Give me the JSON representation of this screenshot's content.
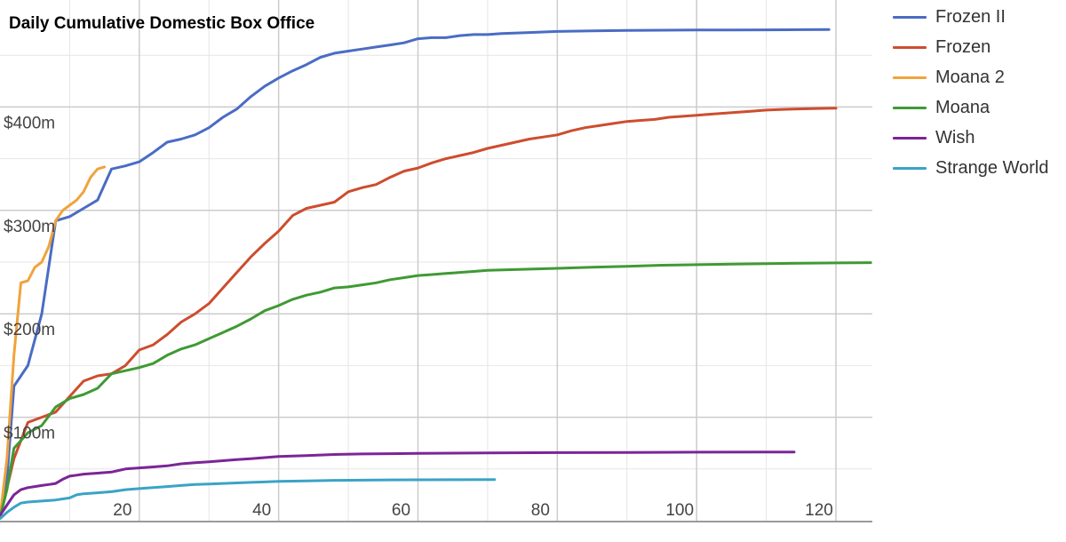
{
  "chart_data": {
    "type": "line",
    "title": "Daily Cumulative Domestic Box Office",
    "xlabel": "",
    "ylabel": "",
    "xlim": [
      0,
      125
    ],
    "ylim": [
      0,
      500
    ],
    "x_ticks": [
      20,
      40,
      60,
      80,
      100,
      120
    ],
    "x_tick_labels": [
      "20",
      "40",
      "60",
      "80",
      "100",
      "120"
    ],
    "y_ticks": [
      100,
      200,
      300,
      400
    ],
    "y_tick_labels": [
      "$100m",
      "$200m",
      "$300m",
      "$400m"
    ],
    "grid": true,
    "legend_position": "right",
    "series": [
      {
        "name": "Frozen II",
        "color": "#4a6cc4",
        "points": [
          [
            0,
            3
          ],
          [
            1,
            40
          ],
          [
            2,
            130
          ],
          [
            4,
            150
          ],
          [
            6,
            200
          ],
          [
            8,
            290
          ],
          [
            10,
            294
          ],
          [
            12,
            302
          ],
          [
            14,
            310
          ],
          [
            16,
            340
          ],
          [
            18,
            343
          ],
          [
            20,
            347
          ],
          [
            22,
            356
          ],
          [
            24,
            366
          ],
          [
            26,
            369
          ],
          [
            28,
            373
          ],
          [
            30,
            380
          ],
          [
            32,
            390
          ],
          [
            34,
            398
          ],
          [
            36,
            410
          ],
          [
            38,
            420
          ],
          [
            40,
            428
          ],
          [
            42,
            435
          ],
          [
            44,
            441
          ],
          [
            46,
            448
          ],
          [
            48,
            452
          ],
          [
            50,
            454
          ],
          [
            52,
            456
          ],
          [
            54,
            458
          ],
          [
            56,
            460
          ],
          [
            58,
            462
          ],
          [
            60,
            466
          ],
          [
            62,
            467
          ],
          [
            64,
            467
          ],
          [
            66,
            469
          ],
          [
            68,
            470
          ],
          [
            70,
            470
          ],
          [
            72,
            471
          ],
          [
            76,
            472
          ],
          [
            80,
            473
          ],
          [
            85,
            473.5
          ],
          [
            90,
            474
          ],
          [
            95,
            474.2
          ],
          [
            100,
            474.4
          ],
          [
            105,
            474.5
          ],
          [
            110,
            474.6
          ],
          [
            115,
            474.7
          ],
          [
            119,
            474.8
          ]
        ]
      },
      {
        "name": "Frozen",
        "color": "#cd4d2e",
        "points": [
          [
            0,
            3
          ],
          [
            2,
            60
          ],
          [
            4,
            95
          ],
          [
            6,
            100
          ],
          [
            8,
            105
          ],
          [
            10,
            120
          ],
          [
            12,
            135
          ],
          [
            14,
            140
          ],
          [
            16,
            142
          ],
          [
            18,
            150
          ],
          [
            20,
            165
          ],
          [
            22,
            170
          ],
          [
            24,
            180
          ],
          [
            26,
            192
          ],
          [
            28,
            200
          ],
          [
            30,
            210
          ],
          [
            32,
            225
          ],
          [
            34,
            240
          ],
          [
            36,
            255
          ],
          [
            38,
            268
          ],
          [
            40,
            280
          ],
          [
            42,
            295
          ],
          [
            44,
            302
          ],
          [
            46,
            305
          ],
          [
            48,
            308
          ],
          [
            50,
            318
          ],
          [
            52,
            322
          ],
          [
            54,
            325
          ],
          [
            56,
            332
          ],
          [
            58,
            338
          ],
          [
            60,
            341
          ],
          [
            62,
            346
          ],
          [
            64,
            350
          ],
          [
            66,
            353
          ],
          [
            68,
            356
          ],
          [
            70,
            360
          ],
          [
            72,
            363
          ],
          [
            74,
            366
          ],
          [
            76,
            369
          ],
          [
            78,
            371
          ],
          [
            80,
            373
          ],
          [
            82,
            377
          ],
          [
            84,
            380
          ],
          [
            86,
            382
          ],
          [
            88,
            384
          ],
          [
            90,
            386
          ],
          [
            92,
            387
          ],
          [
            94,
            388
          ],
          [
            96,
            390
          ],
          [
            98,
            391
          ],
          [
            100,
            392
          ],
          [
            102,
            393
          ],
          [
            104,
            394
          ],
          [
            106,
            395
          ],
          [
            108,
            396
          ],
          [
            110,
            397
          ],
          [
            112,
            397.5
          ],
          [
            114,
            398
          ],
          [
            116,
            398.3
          ],
          [
            118,
            398.6
          ],
          [
            120,
            398.8
          ]
        ]
      },
      {
        "name": "Moana 2",
        "color": "#f0a33c",
        "points": [
          [
            0,
            3
          ],
          [
            1,
            60
          ],
          [
            2,
            160
          ],
          [
            3,
            230
          ],
          [
            4,
            232
          ],
          [
            5,
            245
          ],
          [
            6,
            250
          ],
          [
            7,
            265
          ],
          [
            8,
            290
          ],
          [
            9,
            300
          ],
          [
            10,
            305
          ],
          [
            11,
            310
          ],
          [
            12,
            318
          ],
          [
            13,
            332
          ],
          [
            14,
            340
          ],
          [
            15,
            342
          ]
        ]
      },
      {
        "name": "Moana",
        "color": "#3f9a34",
        "points": [
          [
            0,
            3
          ],
          [
            1,
            30
          ],
          [
            2,
            70
          ],
          [
            4,
            85
          ],
          [
            6,
            92
          ],
          [
            8,
            110
          ],
          [
            10,
            118
          ],
          [
            12,
            122
          ],
          [
            14,
            128
          ],
          [
            16,
            142
          ],
          [
            18,
            145
          ],
          [
            20,
            148
          ],
          [
            22,
            152
          ],
          [
            24,
            160
          ],
          [
            26,
            166
          ],
          [
            28,
            170
          ],
          [
            30,
            176
          ],
          [
            32,
            182
          ],
          [
            34,
            188
          ],
          [
            36,
            195
          ],
          [
            38,
            203
          ],
          [
            40,
            208
          ],
          [
            42,
            214
          ],
          [
            44,
            218
          ],
          [
            46,
            221
          ],
          [
            48,
            225
          ],
          [
            50,
            226
          ],
          [
            52,
            228
          ],
          [
            54,
            230
          ],
          [
            56,
            233
          ],
          [
            58,
            235
          ],
          [
            60,
            237
          ],
          [
            62,
            238
          ],
          [
            64,
            239
          ],
          [
            66,
            240
          ],
          [
            68,
            241
          ],
          [
            70,
            242
          ],
          [
            75,
            243
          ],
          [
            80,
            244
          ],
          [
            85,
            245
          ],
          [
            90,
            246
          ],
          [
            95,
            247
          ],
          [
            100,
            247.5
          ],
          [
            105,
            248
          ],
          [
            110,
            248.5
          ],
          [
            115,
            249
          ],
          [
            120,
            249.2
          ],
          [
            125,
            249.5
          ]
        ]
      },
      {
        "name": "Wish",
        "color": "#7b2597",
        "points": [
          [
            0,
            5
          ],
          [
            1,
            15
          ],
          [
            2,
            25
          ],
          [
            3,
            30
          ],
          [
            4,
            32
          ],
          [
            5,
            33
          ],
          [
            6,
            34
          ],
          [
            7,
            35
          ],
          [
            8,
            36
          ],
          [
            9,
            40
          ],
          [
            10,
            43
          ],
          [
            11,
            44
          ],
          [
            12,
            45
          ],
          [
            14,
            46
          ],
          [
            16,
            47
          ],
          [
            18,
            50
          ],
          [
            20,
            51
          ],
          [
            22,
            52
          ],
          [
            24,
            53
          ],
          [
            26,
            55
          ],
          [
            28,
            56
          ],
          [
            30,
            57
          ],
          [
            32,
            58
          ],
          [
            34,
            59
          ],
          [
            36,
            60
          ],
          [
            38,
            61
          ],
          [
            40,
            62
          ],
          [
            44,
            63
          ],
          [
            48,
            64
          ],
          [
            52,
            64.5
          ],
          [
            56,
            64.8
          ],
          [
            60,
            65
          ],
          [
            70,
            65.5
          ],
          [
            80,
            65.8
          ],
          [
            90,
            66
          ],
          [
            100,
            66.2
          ],
          [
            110,
            66.3
          ],
          [
            114,
            66.4
          ]
        ]
      },
      {
        "name": "Strange World",
        "color": "#3ba3c6",
        "points": [
          [
            0,
            2
          ],
          [
            1,
            8
          ],
          [
            2,
            13
          ],
          [
            3,
            17
          ],
          [
            4,
            18
          ],
          [
            6,
            19
          ],
          [
            8,
            20
          ],
          [
            10,
            22
          ],
          [
            11,
            25
          ],
          [
            12,
            26
          ],
          [
            14,
            27
          ],
          [
            16,
            28
          ],
          [
            18,
            30
          ],
          [
            20,
            31
          ],
          [
            22,
            32
          ],
          [
            24,
            33
          ],
          [
            26,
            34
          ],
          [
            28,
            35
          ],
          [
            30,
            35.5
          ],
          [
            32,
            36
          ],
          [
            34,
            36.5
          ],
          [
            36,
            37
          ],
          [
            38,
            37.5
          ],
          [
            40,
            38
          ],
          [
            44,
            38.5
          ],
          [
            48,
            39
          ],
          [
            52,
            39.2
          ],
          [
            56,
            39.4
          ],
          [
            60,
            39.5
          ],
          [
            66,
            39.6
          ],
          [
            71,
            39.7
          ]
        ]
      }
    ]
  }
}
